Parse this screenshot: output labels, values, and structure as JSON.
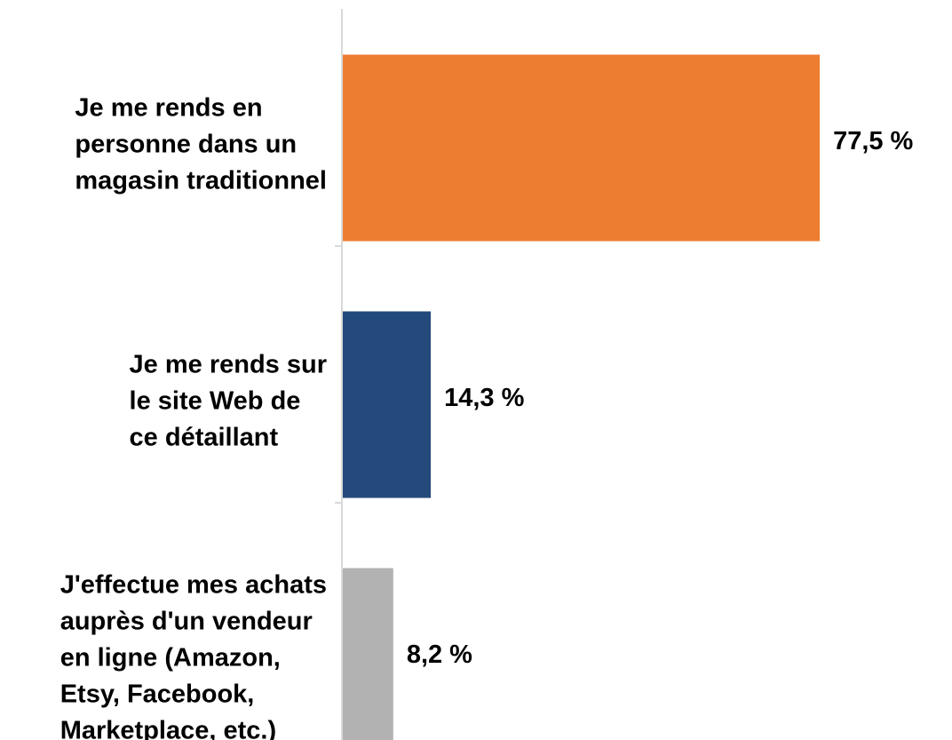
{
  "chart_data": {
    "type": "bar",
    "orientation": "horizontal",
    "categories": [
      "Je me rends en\npersonne dans un\nmagasin traditionnel",
      "Je me rends sur\nle site Web de\nce détaillant",
      "J'effectue mes achats\nauprès d'un vendeur\nen ligne (Amazon,\nEtsy, Facebook,\nMarketplace, etc.)"
    ],
    "values": [
      77.5,
      14.3,
      8.2
    ],
    "value_labels": [
      "77,5 %",
      "14,3 %",
      "8,2 %"
    ],
    "colors": [
      "#ed7d31",
      "#244a7b",
      "#b1b2b1"
    ],
    "xlim": [
      0,
      100
    ]
  }
}
